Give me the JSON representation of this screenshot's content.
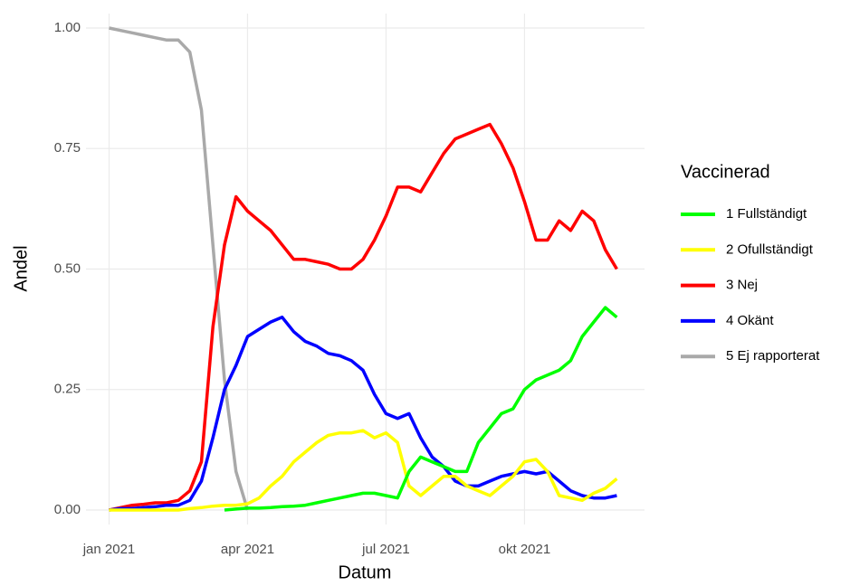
{
  "chart_data": {
    "type": "line",
    "x_label": "Datum",
    "y_label": "Andel",
    "legend_title": "Vaccinerad",
    "legend_position": "right",
    "grid": true,
    "xlim": [
      -0.5,
      11.6
    ],
    "xticks": [
      {
        "value": 0,
        "label": "jan 2021"
      },
      {
        "value": 3,
        "label": "apr 2021"
      },
      {
        "value": 6,
        "label": "jul 2021"
      },
      {
        "value": 9,
        "label": "okt 2021"
      }
    ],
    "ylim": [
      -0.03,
      1.03
    ],
    "yticks": [
      {
        "value": 0,
        "label": "0.00"
      },
      {
        "value": 0.25,
        "label": "0.25"
      },
      {
        "value": 0.5,
        "label": "0.50"
      },
      {
        "value": 0.75,
        "label": "0.75"
      },
      {
        "value": 1,
        "label": "1.00"
      }
    ],
    "x": [
      0,
      0.25,
      0.5,
      0.75,
      1,
      1.25,
      1.5,
      1.75,
      2,
      2.25,
      2.5,
      2.75,
      3,
      3.25,
      3.5,
      3.75,
      4,
      4.25,
      4.5,
      4.75,
      5,
      5.25,
      5.5,
      5.75,
      6,
      6.25,
      6.5,
      6.75,
      7,
      7.25,
      7.5,
      7.75,
      8,
      8.25,
      8.5,
      8.75,
      9,
      9.25,
      9.5,
      9.75,
      10,
      10.25,
      10.5,
      10.75,
      11
    ],
    "series": [
      {
        "name": "5 Ej rapporterat",
        "color": "#a9a9a9",
        "values": [
          1.0,
          0.995,
          0.99,
          0.985,
          0.98,
          0.975,
          0.975,
          0.95,
          0.83,
          0.55,
          0.27,
          0.08,
          0.0,
          null,
          null,
          null,
          null,
          null,
          null,
          null,
          null,
          null,
          null,
          null,
          null,
          null,
          null,
          null,
          null,
          null,
          null,
          null,
          null,
          null,
          null,
          null,
          null,
          null,
          null,
          null,
          null,
          null,
          null,
          null,
          null
        ]
      },
      {
        "name": "3 Nej",
        "color": "#ff0000",
        "values": [
          0,
          0.005,
          0.01,
          0.012,
          0.015,
          0.015,
          0.02,
          0.04,
          0.1,
          0.38,
          0.55,
          0.65,
          0.62,
          0.6,
          0.58,
          0.55,
          0.52,
          0.52,
          0.515,
          0.51,
          0.5,
          0.5,
          0.52,
          0.56,
          0.61,
          0.67,
          0.67,
          0.66,
          0.7,
          0.74,
          0.77,
          0.78,
          0.79,
          0.8,
          0.76,
          0.71,
          0.64,
          0.56,
          0.56,
          0.6,
          0.58,
          0.62,
          0.6,
          0.54,
          0.5
        ]
      },
      {
        "name": "4 Okänt",
        "color": "#0000ff",
        "values": [
          0,
          0.003,
          0.003,
          0.005,
          0.007,
          0.01,
          0.01,
          0.02,
          0.06,
          0.15,
          0.25,
          0.3,
          0.36,
          0.375,
          0.39,
          0.4,
          0.37,
          0.35,
          0.34,
          0.325,
          0.32,
          0.31,
          0.29,
          0.24,
          0.2,
          0.19,
          0.2,
          0.15,
          0.11,
          0.09,
          0.06,
          0.05,
          0.05,
          0.06,
          0.07,
          0.075,
          0.08,
          0.075,
          0.08,
          0.06,
          0.04,
          0.03,
          0.025,
          0.025,
          0.03
        ]
      },
      {
        "name": "2 Ofullständigt",
        "color": "#ffff00",
        "values": [
          0,
          0,
          0,
          0,
          0,
          0,
          0,
          0.003,
          0.005,
          0.008,
          0.01,
          0.01,
          0.013,
          0.025,
          0.05,
          0.07,
          0.1,
          0.12,
          0.14,
          0.155,
          0.16,
          0.16,
          0.165,
          0.15,
          0.16,
          0.14,
          0.05,
          0.03,
          0.05,
          0.07,
          0.07,
          0.05,
          0.04,
          0.03,
          0.05,
          0.07,
          0.1,
          0.105,
          0.08,
          0.03,
          0.025,
          0.02,
          0.035,
          0.045,
          0.065
        ]
      },
      {
        "name": "1 Fullständigt",
        "color": "#00ff00",
        "values": [
          null,
          null,
          null,
          null,
          null,
          null,
          null,
          null,
          null,
          null,
          0,
          0.002,
          0.004,
          0.004,
          0.005,
          0.007,
          0.008,
          0.01,
          0.015,
          0.02,
          0.025,
          0.03,
          0.035,
          0.035,
          0.03,
          0.025,
          0.08,
          0.11,
          0.1,
          0.09,
          0.08,
          0.08,
          0.14,
          0.17,
          0.2,
          0.21,
          0.25,
          0.27,
          0.28,
          0.29,
          0.31,
          0.36,
          0.39,
          0.42,
          0.4
        ]
      }
    ],
    "legend_order": [
      4,
      3,
      1,
      2,
      0
    ]
  }
}
